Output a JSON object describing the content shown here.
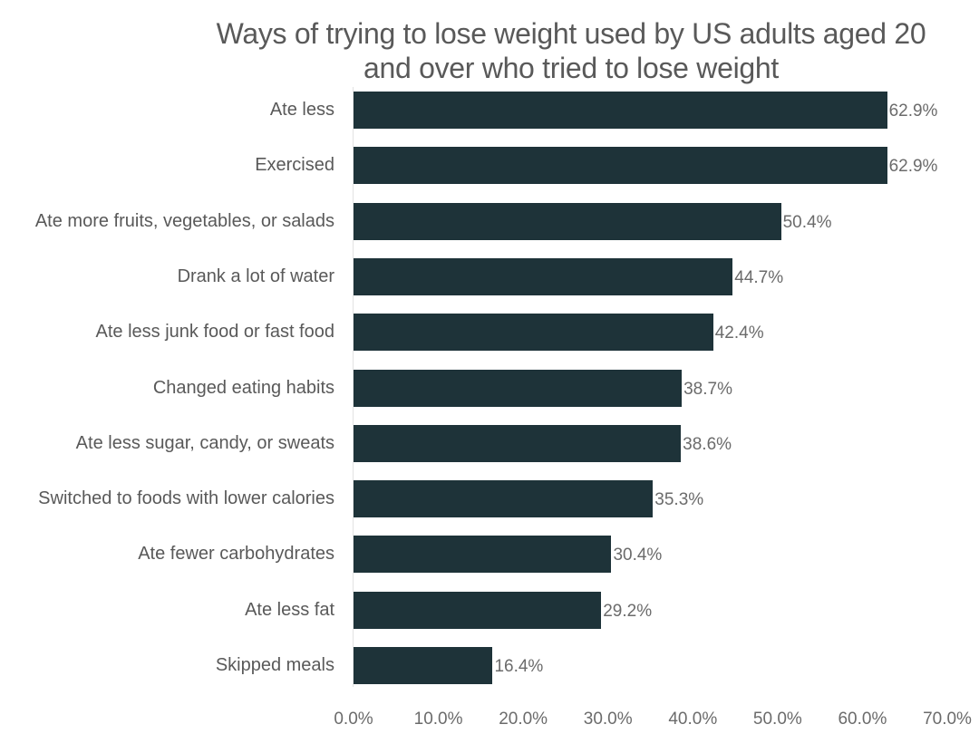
{
  "chart_data": {
    "type": "bar",
    "orientation": "horizontal",
    "title": "Ways of trying to lose weight used by US adults aged 20 and over who tried to lose weight",
    "title_lines": [
      "Ways of trying to lose weight used by US adults aged 20",
      "and over who tried to lose weight"
    ],
    "xlabel": "",
    "ylabel": "",
    "xlim": [
      0,
      70
    ],
    "grid": false,
    "legend": null,
    "bar_color": "#1e3339",
    "categories": [
      "Ate less",
      "Exercised",
      "Ate more fruits, vegetables, or salads",
      "Drank a lot of water",
      "Ate less junk food or fast food",
      "Changed eating habits",
      "Ate less sugar, candy, or sweats",
      "Switched to foods with lower calories",
      "Ate fewer carbohydrates",
      "Ate less fat",
      "Skipped meals"
    ],
    "values": [
      62.9,
      62.9,
      50.4,
      44.7,
      42.4,
      38.7,
      38.6,
      35.3,
      30.4,
      29.2,
      16.4
    ],
    "value_labels": [
      "62.9%",
      "62.9%",
      "50.4%",
      "44.7%",
      "42.4%",
      "38.7%",
      "38.6%",
      "35.3%",
      "30.4%",
      "29.2%",
      "16.4%"
    ],
    "x_ticks": [
      0,
      10,
      20,
      30,
      40,
      50,
      60,
      70
    ],
    "x_tick_labels": [
      "0.0%",
      "10.0%",
      "20.0%",
      "30.0%",
      "40.0%",
      "50.0%",
      "60.0%",
      "70.0%"
    ]
  }
}
